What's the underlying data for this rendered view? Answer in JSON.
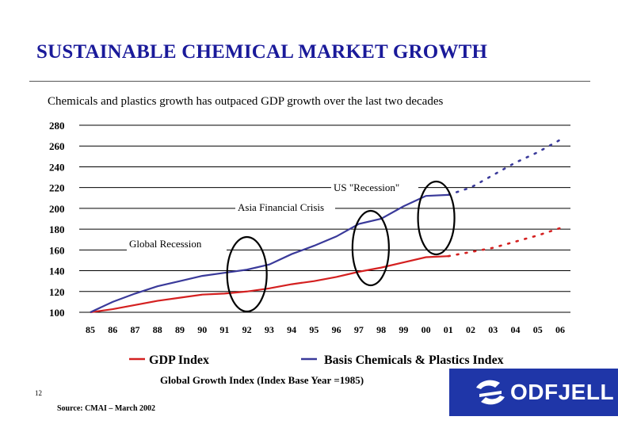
{
  "slide": {
    "title": "SUSTAINABLE CHEMICAL MARKET GROWTH",
    "subtitle": "Chemicals and plastics growth has outpaced GDP growth over the last two decades",
    "x_axis_caption": "Global Growth Index (Index Base Year =1985)",
    "page_number": "12",
    "source": "Source: CMAI – March 2002",
    "logo_text": "ODFJELL"
  },
  "colors": {
    "title": "#1a1a9a",
    "gdp": "#d42020",
    "chemicals": "#3a3a9a",
    "logo_bg": "#1f36a8"
  },
  "chart_data": {
    "type": "line",
    "categories": [
      "85",
      "86",
      "87",
      "88",
      "89",
      "90",
      "91",
      "92",
      "93",
      "94",
      "95",
      "96",
      "97",
      "98",
      "99",
      "00",
      "01",
      "02",
      "03",
      "04",
      "05",
      "06"
    ],
    "ylim": [
      100,
      280
    ],
    "yticks": [
      100,
      120,
      140,
      160,
      180,
      200,
      220,
      240,
      260,
      280
    ],
    "grid": "horizontal",
    "legend_position": "bottom",
    "forecast_from": "01",
    "series": [
      {
        "name": "GDP Index",
        "values": [
          100,
          103,
          107,
          111,
          114,
          117,
          118,
          120,
          123,
          127,
          130,
          134,
          139,
          143,
          148,
          153,
          154,
          158,
          162,
          168,
          174,
          181
        ]
      },
      {
        "name": "Basis Chemicals & Plastics Index",
        "values": [
          100,
          110,
          118,
          125,
          130,
          135,
          138,
          141,
          146,
          156,
          164,
          173,
          185,
          190,
          202,
          212,
          213,
          220,
          232,
          244,
          254,
          266
        ]
      }
    ],
    "annotations": [
      {
        "text": "Global Recession",
        "x": "92"
      },
      {
        "text": "Asia Financial Crisis",
        "x": "97"
      },
      {
        "text": "US \"Recession\"",
        "x": "01"
      }
    ]
  }
}
